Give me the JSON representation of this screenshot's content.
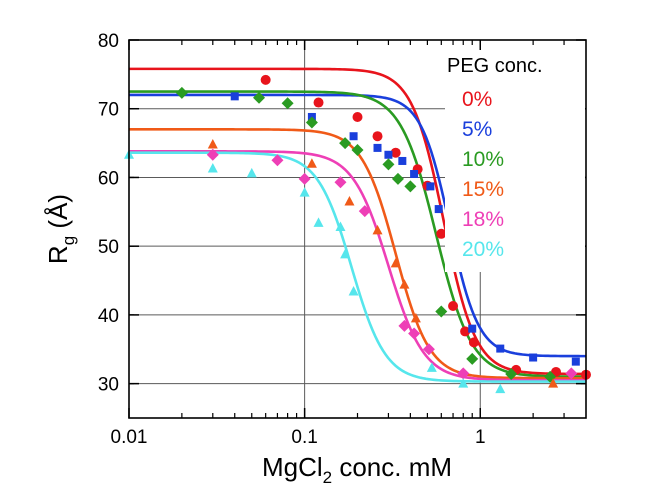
{
  "chart_data": {
    "type": "scatter",
    "title": "",
    "xlabel": {
      "main": "MgCl",
      "sub": "2",
      "rest": " conc. mM"
    },
    "ylabel": {
      "main": "R",
      "sub": "g",
      "rest": " (Å)"
    },
    "x_scale": "log",
    "xlim": [
      0.01,
      4
    ],
    "ylim": [
      25,
      80
    ],
    "x_ticks": [
      0.01,
      0.1,
      1
    ],
    "x_tick_labels": [
      "0.01",
      "0.1",
      "1"
    ],
    "y_ticks": [
      30,
      40,
      50,
      60,
      70,
      80
    ],
    "y_tick_labels": [
      "30",
      "40",
      "50",
      "60",
      "70",
      "80"
    ],
    "grid": true,
    "legend_title": "PEG conc.",
    "legend_position": "top-right",
    "series": [
      {
        "name": "0%",
        "color": "#e8141c",
        "marker": "circle",
        "points": [
          [
            0.06,
            74.2
          ],
          [
            0.12,
            70.9
          ],
          [
            0.2,
            68.8
          ],
          [
            0.26,
            66.0
          ],
          [
            0.33,
            63.6
          ],
          [
            0.44,
            61.2
          ],
          [
            0.5,
            58.8
          ],
          [
            0.6,
            51.8
          ],
          [
            0.7,
            41.3
          ],
          [
            0.82,
            37.6
          ],
          [
            0.92,
            36.0
          ],
          [
            1.6,
            32.0
          ],
          [
            2.7,
            31.7
          ],
          [
            4.0,
            31.3
          ]
        ],
        "fit": {
          "top": 75.8,
          "bottom": 31.4,
          "x50": 0.62,
          "n": 4.8
        }
      },
      {
        "name": "5%",
        "color": "#1a3fdc",
        "marker": "square",
        "points": [
          [
            0.04,
            71.8
          ],
          [
            0.11,
            68.8
          ],
          [
            0.19,
            66.0
          ],
          [
            0.26,
            64.3
          ],
          [
            0.3,
            63.3
          ],
          [
            0.36,
            62.4
          ],
          [
            0.42,
            60.5
          ],
          [
            0.52,
            58.7
          ],
          [
            0.58,
            55.4
          ],
          [
            0.9,
            38.0
          ],
          [
            1.3,
            35.1
          ],
          [
            2.0,
            33.8
          ],
          [
            3.5,
            33.2
          ]
        ],
        "fit": {
          "top": 72.0,
          "bottom": 34.0,
          "x50": 0.67,
          "n": 5.3
        }
      },
      {
        "name": "10%",
        "color": "#2a9b22",
        "marker": "diamond",
        "points": [
          [
            0.02,
            72.3
          ],
          [
            0.055,
            71.6
          ],
          [
            0.08,
            70.8
          ],
          [
            0.11,
            68.0
          ],
          [
            0.17,
            65.0
          ],
          [
            0.2,
            64.0
          ],
          [
            0.3,
            61.9
          ],
          [
            0.34,
            59.8
          ],
          [
            0.4,
            58.7
          ],
          [
            0.6,
            40.5
          ],
          [
            0.9,
            33.6
          ],
          [
            1.5,
            31.4
          ],
          [
            2.5,
            31.0
          ]
        ],
        "fit": {
          "top": 72.5,
          "bottom": 31.0,
          "x50": 0.56,
          "n": 4.3
        }
      },
      {
        "name": "15%",
        "color": "#f05a18",
        "marker": "triangle",
        "points": [
          [
            0.03,
            64.8
          ],
          [
            0.11,
            62.0
          ],
          [
            0.18,
            56.5
          ],
          [
            0.26,
            52.3
          ],
          [
            0.33,
            47.5
          ],
          [
            0.37,
            44.4
          ],
          [
            0.43,
            39.5
          ],
          [
            2.6,
            30.0
          ]
        ],
        "fit": {
          "top": 67.0,
          "bottom": 30.8,
          "x50": 0.33,
          "n": 4.5
        }
      },
      {
        "name": "18%",
        "color": "#ee3fb6",
        "marker": "diamond",
        "points": [
          [
            0.03,
            63.3
          ],
          [
            0.07,
            62.5
          ],
          [
            0.1,
            59.8
          ],
          [
            0.16,
            59.3
          ],
          [
            0.22,
            55.1
          ],
          [
            0.37,
            38.4
          ],
          [
            0.42,
            37.3
          ],
          [
            0.51,
            35.0
          ],
          [
            0.8,
            31.5
          ],
          [
            3.3,
            31.5
          ]
        ],
        "fit": {
          "top": 63.8,
          "bottom": 30.5,
          "x50": 0.3,
          "n": 4.3
        }
      },
      {
        "name": "20%",
        "color": "#56e6ec",
        "marker": "triangle",
        "points": [
          [
            0.01,
            63.3
          ],
          [
            0.03,
            61.3
          ],
          [
            0.05,
            60.6
          ],
          [
            0.1,
            57.8
          ],
          [
            0.12,
            53.4
          ],
          [
            0.16,
            52.8
          ],
          [
            0.17,
            48.8
          ],
          [
            0.19,
            43.4
          ],
          [
            0.53,
            32.3
          ],
          [
            0.8,
            30.0
          ],
          [
            1.3,
            29.2
          ]
        ],
        "fit": {
          "top": 63.6,
          "bottom": 30.3,
          "x50": 0.185,
          "n": 4.5
        }
      }
    ]
  }
}
